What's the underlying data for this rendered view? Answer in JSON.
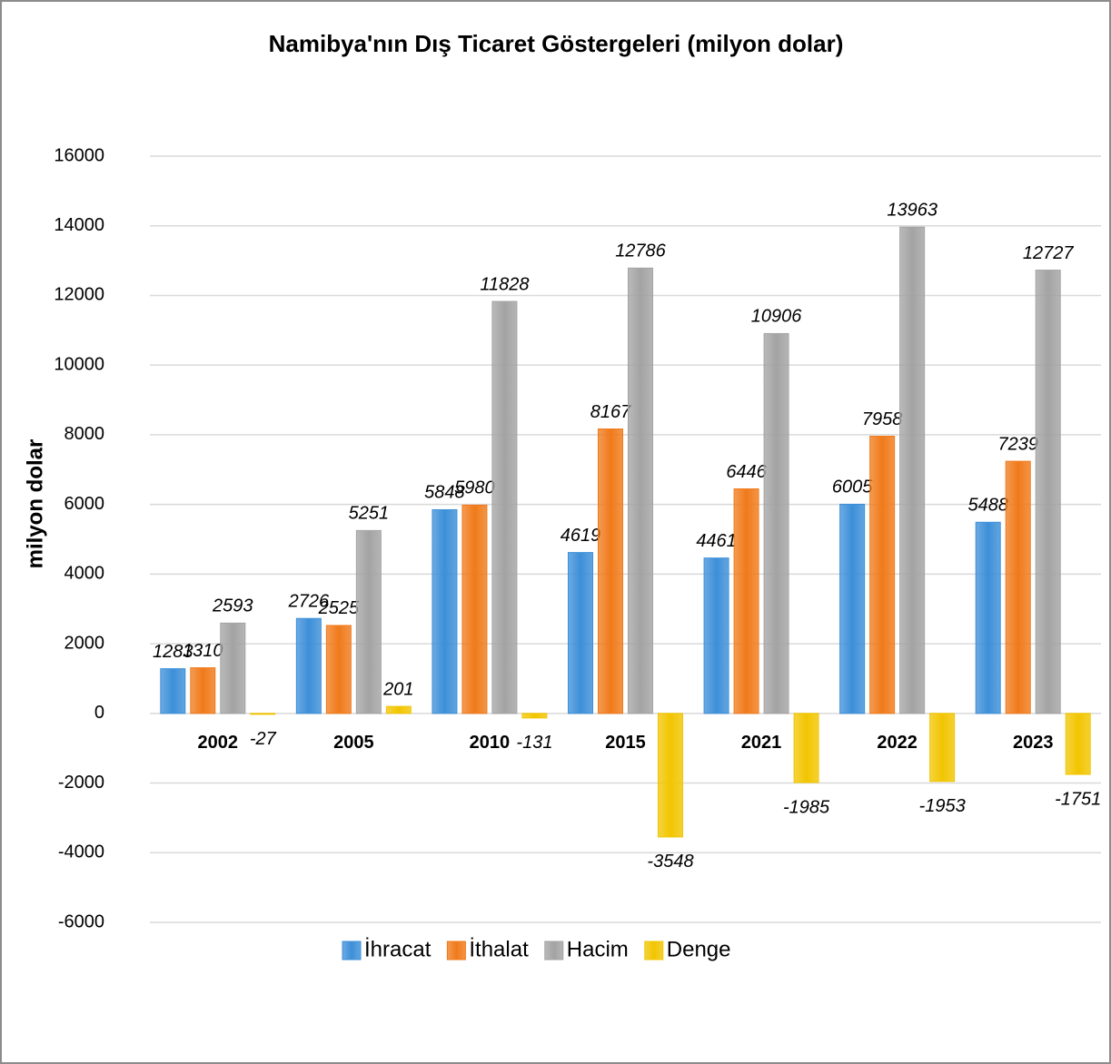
{
  "chart_data": {
    "type": "bar",
    "title": "Namibya'nın Dış Ticaret Göstergeleri  (milyon dolar)",
    "y_label": "milyon dolar",
    "categories": [
      "2002",
      "2005",
      "2010",
      "2015",
      "2021",
      "2022",
      "2023"
    ],
    "series": [
      {
        "name": "İhracat",
        "color": "#3c8fd8",
        "values": [
          1283,
          2726,
          5848,
          4619,
          4461,
          6005,
          5488
        ]
      },
      {
        "name": "İthalat",
        "color": "#f07a1a",
        "values": [
          1310,
          2525,
          5980,
          8167,
          6446,
          7958,
          7239
        ]
      },
      {
        "name": "Hacim",
        "color": "#a3a3a3",
        "values": [
          2593,
          5251,
          11828,
          12786,
          10906,
          13963,
          12727
        ]
      },
      {
        "name": "Denge",
        "color": "#f2c500",
        "values": [
          -27,
          201,
          -131,
          -3548,
          -1985,
          -1953,
          -1751
        ]
      }
    ],
    "ylim": [
      -6000,
      16000
    ],
    "yticks": [
      -6000,
      -4000,
      -2000,
      0,
      2000,
      4000,
      6000,
      8000,
      10000,
      12000,
      14000,
      16000
    ],
    "grid": true,
    "legend": "bottom"
  }
}
